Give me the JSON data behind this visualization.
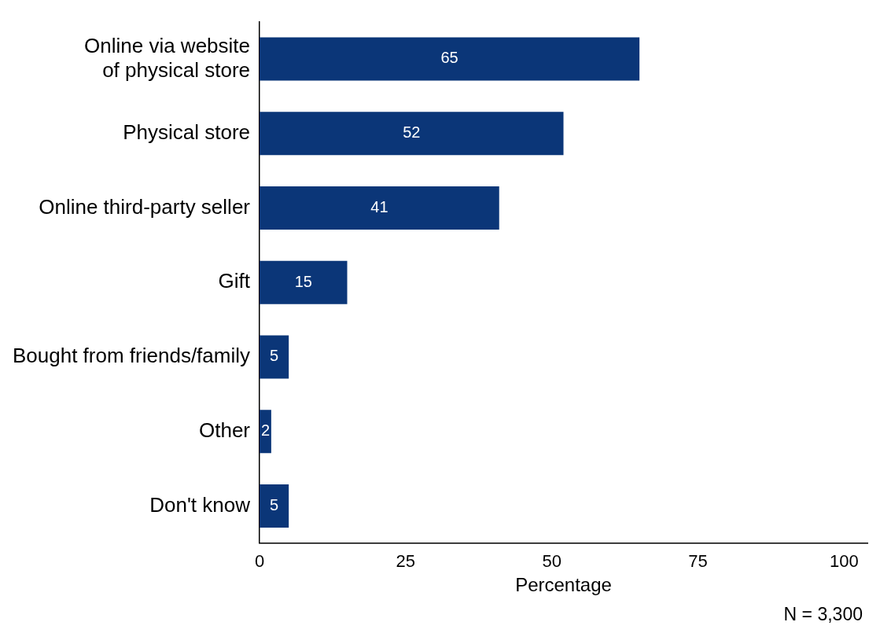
{
  "chart_data": {
    "type": "bar",
    "orientation": "horizontal",
    "categories": [
      "Online via website of physical store",
      "Physical store",
      "Online third-party seller",
      "Gift",
      "Bought from friends/family",
      "Other",
      "Don't know"
    ],
    "values": [
      65,
      52,
      41,
      15,
      5,
      2,
      5
    ],
    "color": "#0b3678",
    "xlabel": "Percentage",
    "xlim": [
      0,
      104
    ],
    "xticks": [
      0,
      25,
      50,
      75,
      100
    ],
    "grid": false,
    "legend": false,
    "data_labels": true,
    "annotations": [
      "N = 3,300"
    ]
  }
}
